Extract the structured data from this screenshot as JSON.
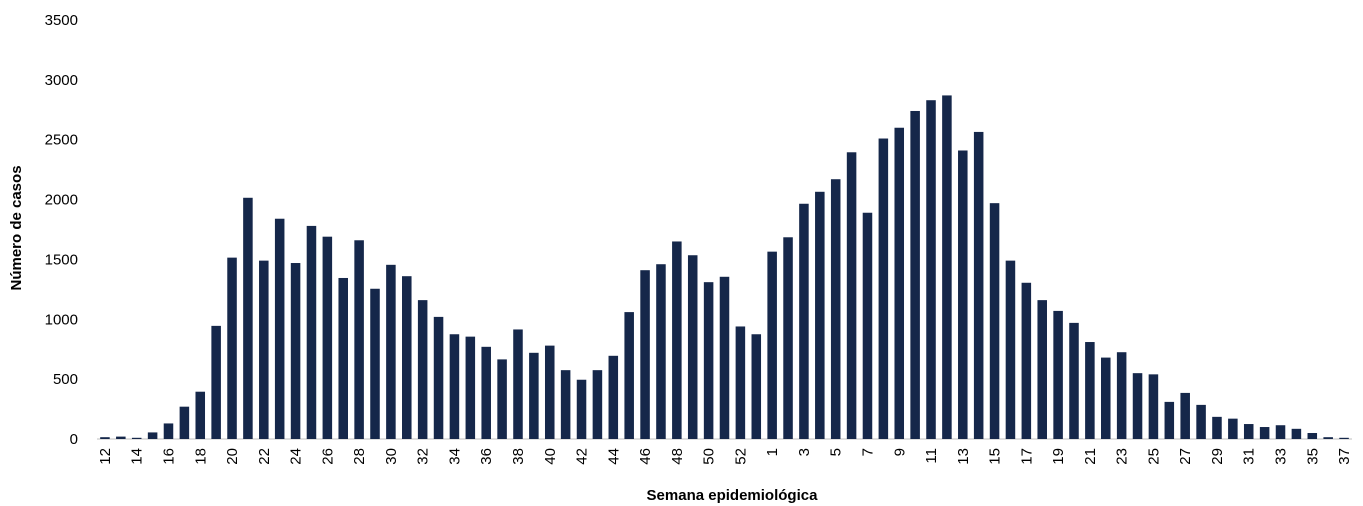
{
  "chart_data": {
    "type": "bar",
    "xlabel": "Semana epidemiológica",
    "ylabel": "Número de casos",
    "ylim": [
      0,
      3500
    ],
    "yticks": [
      0,
      500,
      1000,
      1500,
      2000,
      2500,
      3000,
      3500
    ],
    "grid": false,
    "legend": "none",
    "bar_color": "#15274A",
    "categories": [
      "12",
      "13",
      "14",
      "15",
      "16",
      "17",
      "18",
      "19",
      "20",
      "21",
      "22",
      "23",
      "24",
      "25",
      "26",
      "27",
      "28",
      "29",
      "30",
      "31",
      "32",
      "33",
      "34",
      "35",
      "36",
      "37",
      "38",
      "39",
      "40",
      "41",
      "42",
      "43",
      "44",
      "45",
      "46",
      "47",
      "48",
      "49",
      "50",
      "51",
      "52",
      "53",
      "1",
      "2",
      "3",
      "4",
      "5",
      "6",
      "7",
      "8",
      "9",
      "10",
      "11",
      "12",
      "13",
      "14",
      "15",
      "16",
      "17",
      "18",
      "19",
      "20",
      "21",
      "22",
      "23",
      "24",
      "25",
      "26",
      "27",
      "28",
      "29",
      "30",
      "31",
      "32",
      "33",
      "34",
      "35",
      "36",
      "37"
    ],
    "values": [
      15,
      20,
      10,
      55,
      130,
      270,
      395,
      945,
      1515,
      2015,
      1490,
      1840,
      1470,
      1780,
      1690,
      1345,
      1660,
      1255,
      1455,
      1360,
      1160,
      1020,
      875,
      855,
      770,
      665,
      915,
      720,
      780,
      575,
      495,
      575,
      695,
      1060,
      1410,
      1460,
      1650,
      1535,
      1310,
      1355,
      940,
      875,
      1565,
      1685,
      1965,
      2065,
      2170,
      2395,
      1890,
      2510,
      2600,
      2740,
      2830,
      2870,
      2410,
      2565,
      1970,
      1490,
      1305,
      1160,
      1070,
      970,
      810,
      680,
      725,
      550,
      540,
      310,
      385,
      285,
      185,
      170,
      125,
      100,
      115,
      85,
      50,
      15,
      10
    ],
    "visible_tick_labels": [
      "12",
      "14",
      "16",
      "18",
      "20",
      "22",
      "24",
      "26",
      "28",
      "30",
      "32",
      "34",
      "36",
      "38",
      "40",
      "42",
      "44",
      "46",
      "48",
      "50",
      "52",
      "1",
      "3",
      "5",
      "7",
      "9",
      "11",
      "13",
      "15",
      "17",
      "19",
      "21",
      "23",
      "25",
      "27",
      "29",
      "31",
      "33",
      "35",
      "37"
    ]
  }
}
